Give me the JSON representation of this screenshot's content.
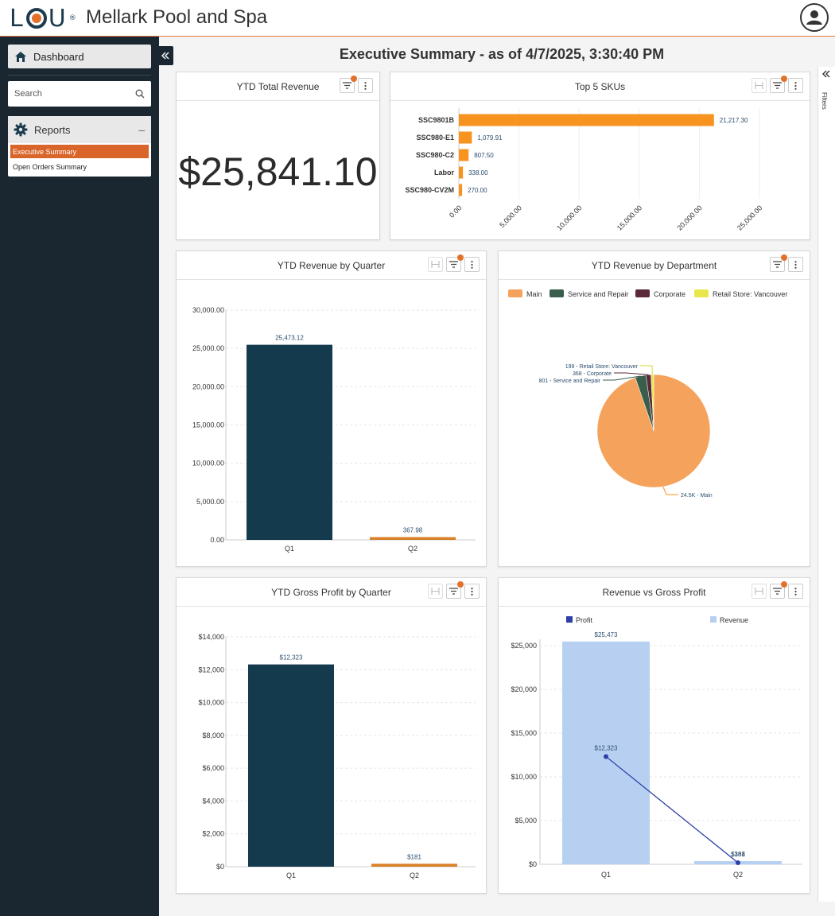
{
  "app": {
    "logo_text": "LOU",
    "title": "Mellark Pool and Spa"
  },
  "sidebar": {
    "dashboard_label": "Dashboard",
    "search_placeholder": "Search",
    "reports_label": "Reports",
    "reports_collapse": "–",
    "report_items": [
      {
        "label": "Executive Summary",
        "active": true
      },
      {
        "label": "Open Orders Summary",
        "active": false
      }
    ]
  },
  "main": {
    "title": "Executive Summary - as of 4/7/2025, 3:30:40 PM",
    "filters_label": "Filters"
  },
  "panels": {
    "ytd_total_revenue": {
      "title": "YTD Total Revenue",
      "value": "$25,841.10"
    },
    "top_skus": {
      "title": "Top 5 SKUs"
    },
    "revenue_by_quarter": {
      "title": "YTD Revenue by Quarter"
    },
    "revenue_by_department": {
      "title": "YTD Revenue by Department"
    },
    "gross_profit_by_quarter": {
      "title": "YTD Gross Profit by Quarter"
    },
    "revenue_vs_profit": {
      "title": "Revenue vs Gross Profit"
    }
  },
  "colors": {
    "accent": "#e2712c",
    "bar_orange": "#f7931e",
    "bar_navy": "#143a4e",
    "q2_bar": "#d9822b",
    "revenue_blue": "#b7d0f2",
    "profit_line": "#2e3fa6"
  },
  "chart_data": [
    {
      "id": "top_skus",
      "type": "bar",
      "orientation": "horizontal",
      "categories": [
        "SSC9801B",
        "SSC980-E1",
        "SSC980-C2",
        "Labor",
        "SSC980-CV2M"
      ],
      "values": [
        21217.3,
        1079.91,
        807.5,
        338.0,
        270.0
      ],
      "value_labels": [
        "21,217.30",
        "1,079.91",
        "807.50",
        "338.00",
        "270.00"
      ],
      "xlim": [
        0,
        25000
      ],
      "xticks": [
        "0.00",
        "5,000.00",
        "10,000.00",
        "15,000.00",
        "20,000.00",
        "25,000.00"
      ],
      "grid": true
    },
    {
      "id": "revenue_by_quarter",
      "type": "bar",
      "categories": [
        "Q1",
        "Q2"
      ],
      "values": [
        25473.12,
        367.98
      ],
      "value_labels": [
        "25,473.12",
        "367.98"
      ],
      "ylim": [
        0,
        30000
      ],
      "yticks": [
        "0.00",
        "5,000.00",
        "10,000.00",
        "15,000.00",
        "20,000.00",
        "25,000.00",
        "30,000.00"
      ],
      "grid": true
    },
    {
      "id": "revenue_by_department",
      "type": "pie",
      "labels": [
        "Main",
        "Service and Repair",
        "Corporate",
        "Retail Store: Vancouver"
      ],
      "values": [
        24500,
        801,
        368,
        199
      ],
      "slice_labels": [
        "24.5K - Main",
        "801 - Service and Repair",
        "368 - Corporate",
        "199 - Retail Store: Vancouver"
      ],
      "colors": [
        "#f5a25d",
        "#3a5e4c",
        "#5a2a3a",
        "#e8e84a"
      ],
      "legend": "top"
    },
    {
      "id": "gross_profit_by_quarter",
      "type": "bar",
      "categories": [
        "Q1",
        "Q2"
      ],
      "values": [
        12323,
        181
      ],
      "value_labels": [
        "$12,323",
        "$181"
      ],
      "ylim": [
        0,
        14000
      ],
      "yticks": [
        "$0",
        "$2,000",
        "$4,000",
        "$6,000",
        "$8,000",
        "$10,000",
        "$12,000",
        "$14,000"
      ],
      "grid": true
    },
    {
      "id": "revenue_vs_profit",
      "type": "bar",
      "categories": [
        "Q1",
        "Q2"
      ],
      "series": [
        {
          "name": "Revenue",
          "type": "bar",
          "values": [
            25473,
            368
          ],
          "value_labels": [
            "$25,473",
            "$368"
          ]
        },
        {
          "name": "Profit",
          "type": "line",
          "values": [
            12323,
            181
          ],
          "value_labels": [
            "$12,323",
            "$181"
          ]
        }
      ],
      "ylim": [
        0,
        25000
      ],
      "yticks": [
        "$0",
        "$5,000",
        "$10,000",
        "$15,000",
        "$20,000",
        "$25,000"
      ],
      "legend": "top",
      "grid": true
    }
  ]
}
